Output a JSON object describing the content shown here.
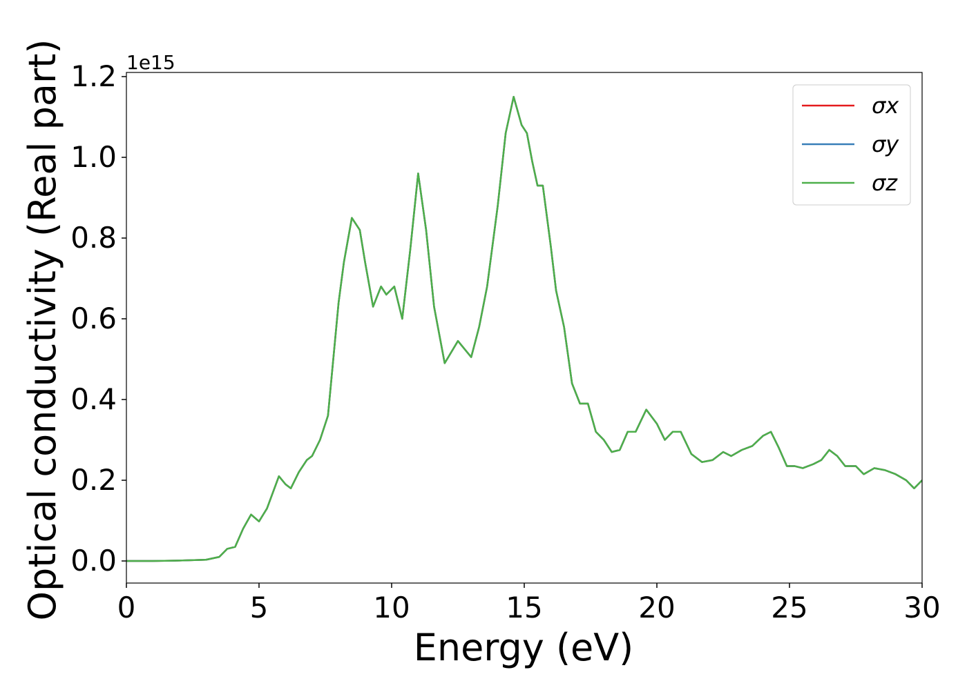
{
  "chart_data": {
    "type": "line",
    "xlabel": "Energy (eV)",
    "ylabel": "Optical conductivity (Real part)",
    "offset_label": "1e15",
    "x": [
      0,
      1,
      2,
      3,
      3.5,
      3.8,
      4.1,
      4.4,
      4.7,
      5.0,
      5.3,
      5.75,
      6.0,
      6.2,
      6.5,
      6.8,
      7.0,
      7.3,
      7.6,
      7.8,
      8.0,
      8.2,
      8.5,
      8.8,
      9.0,
      9.3,
      9.6,
      9.8,
      10.1,
      10.4,
      10.7,
      11.0,
      11.3,
      11.6,
      12.0,
      12.5,
      13.0,
      13.3,
      13.6,
      14.0,
      14.3,
      14.6,
      14.9,
      15.1,
      15.3,
      15.5,
      15.7,
      16.0,
      16.2,
      16.5,
      16.8,
      17.1,
      17.4,
      17.7,
      18.0,
      18.3,
      18.6,
      18.9,
      19.2,
      19.6,
      20.0,
      20.3,
      20.6,
      20.9,
      21.3,
      21.7,
      22.1,
      22.5,
      22.8,
      23.2,
      23.6,
      24.0,
      24.3,
      24.6,
      24.9,
      25.2,
      25.5,
      25.9,
      26.2,
      26.5,
      26.8,
      27.1,
      27.5,
      27.8,
      28.2,
      28.6,
      29.0,
      29.4,
      29.7,
      30.0
    ],
    "series": [
      {
        "name": "σx",
        "color": "#e41a1c",
        "values": [
          0,
          0,
          0.001,
          0.003,
          0.01,
          0.03,
          0.035,
          0.08,
          0.115,
          0.098,
          0.13,
          0.21,
          0.19,
          0.18,
          0.22,
          0.25,
          0.26,
          0.3,
          0.36,
          0.5,
          0.64,
          0.74,
          0.85,
          0.82,
          0.74,
          0.63,
          0.68,
          0.66,
          0.68,
          0.6,
          0.77,
          0.96,
          0.82,
          0.63,
          0.49,
          0.545,
          0.505,
          0.58,
          0.68,
          0.88,
          1.06,
          1.15,
          1.08,
          1.06,
          0.99,
          0.93,
          0.93,
          0.78,
          0.67,
          0.58,
          0.44,
          0.39,
          0.39,
          0.32,
          0.3,
          0.27,
          0.275,
          0.32,
          0.32,
          0.375,
          0.34,
          0.3,
          0.32,
          0.32,
          0.265,
          0.245,
          0.25,
          0.27,
          0.26,
          0.275,
          0.285,
          0.31,
          0.32,
          0.28,
          0.235,
          0.235,
          0.23,
          0.24,
          0.25,
          0.275,
          0.26,
          0.235,
          0.235,
          0.215,
          0.23,
          0.225,
          0.215,
          0.2,
          0.18,
          0.2
        ]
      },
      {
        "name": "σy",
        "color": "#377eb8",
        "values": [
          0,
          0,
          0.001,
          0.003,
          0.01,
          0.03,
          0.035,
          0.08,
          0.115,
          0.098,
          0.13,
          0.21,
          0.19,
          0.18,
          0.22,
          0.25,
          0.26,
          0.3,
          0.36,
          0.5,
          0.64,
          0.74,
          0.85,
          0.82,
          0.74,
          0.63,
          0.68,
          0.66,
          0.68,
          0.6,
          0.77,
          0.96,
          0.82,
          0.63,
          0.49,
          0.545,
          0.505,
          0.58,
          0.68,
          0.88,
          1.06,
          1.15,
          1.08,
          1.06,
          0.99,
          0.93,
          0.93,
          0.78,
          0.67,
          0.58,
          0.44,
          0.39,
          0.39,
          0.32,
          0.3,
          0.27,
          0.275,
          0.32,
          0.32,
          0.375,
          0.34,
          0.3,
          0.32,
          0.32,
          0.265,
          0.245,
          0.25,
          0.27,
          0.26,
          0.275,
          0.285,
          0.31,
          0.32,
          0.28,
          0.235,
          0.235,
          0.23,
          0.24,
          0.25,
          0.275,
          0.26,
          0.235,
          0.235,
          0.215,
          0.23,
          0.225,
          0.215,
          0.2,
          0.18,
          0.2
        ]
      },
      {
        "name": "σz",
        "color": "#4daf4a",
        "values": [
          0,
          0,
          0.001,
          0.003,
          0.01,
          0.03,
          0.035,
          0.08,
          0.115,
          0.098,
          0.13,
          0.21,
          0.19,
          0.18,
          0.22,
          0.25,
          0.26,
          0.3,
          0.36,
          0.5,
          0.64,
          0.74,
          0.85,
          0.82,
          0.74,
          0.63,
          0.68,
          0.66,
          0.68,
          0.6,
          0.77,
          0.96,
          0.82,
          0.63,
          0.49,
          0.545,
          0.505,
          0.58,
          0.68,
          0.88,
          1.06,
          1.15,
          1.08,
          1.06,
          0.99,
          0.93,
          0.93,
          0.78,
          0.67,
          0.58,
          0.44,
          0.39,
          0.39,
          0.32,
          0.3,
          0.27,
          0.275,
          0.32,
          0.32,
          0.375,
          0.34,
          0.3,
          0.32,
          0.32,
          0.265,
          0.245,
          0.25,
          0.27,
          0.26,
          0.275,
          0.285,
          0.31,
          0.32,
          0.28,
          0.235,
          0.235,
          0.23,
          0.24,
          0.25,
          0.275,
          0.26,
          0.235,
          0.235,
          0.215,
          0.23,
          0.225,
          0.215,
          0.2,
          0.18,
          0.2
        ]
      }
    ],
    "xlim": [
      0,
      30
    ],
    "xticks": [
      0,
      5,
      10,
      15,
      20,
      25,
      30
    ],
    "ylim": [
      -0.0547,
      1.2103
    ],
    "yticks": [
      {
        "value": 0,
        "label": "0.0"
      },
      0.2,
      0.4,
      0.6,
      0.8,
      {
        "value": 1,
        "label": "1.0"
      },
      1.2
    ],
    "legend": "upper right",
    "grid": false
  }
}
